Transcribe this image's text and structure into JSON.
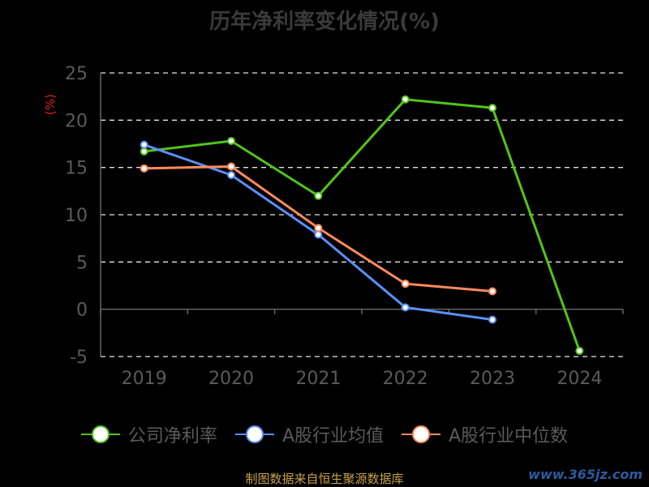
{
  "chart_data": {
    "type": "line",
    "title": "历年净利率变化情况(%)",
    "y_unit": "(%)",
    "categories": [
      "2019",
      "2020",
      "2021",
      "2022",
      "2023",
      "2024"
    ],
    "ylim": [
      -5,
      25
    ],
    "yticks": [
      "25",
      "20",
      "15",
      "10",
      "5",
      "0",
      "-5"
    ],
    "grid": true,
    "legend_position": "bottom",
    "series": [
      {
        "name": "公司净利率",
        "color": "#52c41a",
        "values": [
          16.7,
          17.8,
          12.0,
          22.2,
          21.3,
          -4.4
        ]
      },
      {
        "name": "A股行业均值",
        "color": "#5b8ff9",
        "values": [
          17.4,
          14.2,
          7.9,
          0.2,
          -1.1,
          null
        ]
      },
      {
        "name": "A股行业中位数",
        "color": "#ff8a5c",
        "values": [
          14.9,
          15.1,
          8.6,
          2.7,
          1.9,
          null
        ]
      }
    ]
  },
  "footer": {
    "source": "制图数据来自恒生聚源数据库",
    "watermark": "www.365jz.com"
  }
}
